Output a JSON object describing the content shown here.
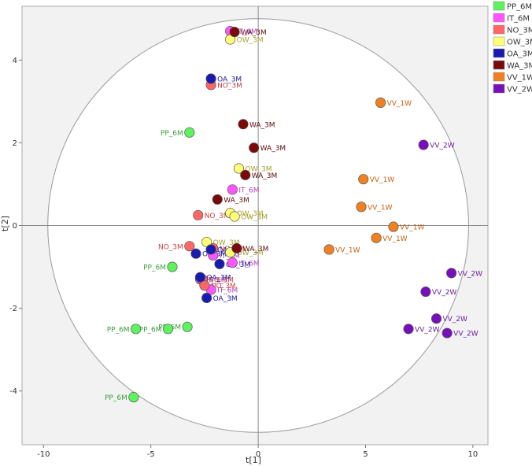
{
  "chart_data": {
    "type": "scatter",
    "title": "",
    "xlabel": "t[1]",
    "ylabel": "t[2]",
    "xlim": [
      -11,
      10.7
    ],
    "ylim": [
      -5.3,
      5.3
    ],
    "xticks": [
      -10,
      -5,
      0,
      5,
      10
    ],
    "yticks": [
      -4,
      -2,
      0,
      2,
      4
    ],
    "ellipse": {
      "cx": 0,
      "cy": 0,
      "rx": 9.8,
      "ry": 5.0
    },
    "legend_position": "top-right",
    "series": [
      {
        "name": "PP_6M",
        "color": "#5ef25e",
        "label_color": "#3a9e3a",
        "points": [
          {
            "x": -3.2,
            "y": 2.25,
            "label": "PP_6M"
          },
          {
            "x": -4.0,
            "y": -1.0,
            "label": "PP_6M"
          },
          {
            "x": -4.2,
            "y": -2.5,
            "label": "PP_6M"
          },
          {
            "x": -3.3,
            "y": -2.45,
            "label": "PP_6M"
          },
          {
            "x": -5.7,
            "y": -2.5,
            "label": "PP_6M"
          },
          {
            "x": -5.8,
            "y": -4.15,
            "label": "PP_6M"
          }
        ]
      },
      {
        "name": "IT_6M",
        "color": "#ff55ff",
        "label_color": "#b33cb3",
        "points": [
          {
            "x": -1.3,
            "y": 4.7,
            "label": "IT_6M"
          },
          {
            "x": -1.2,
            "y": 0.87,
            "label": "IT_6M"
          },
          {
            "x": -2.1,
            "y": -0.72,
            "label": "IT_6M"
          },
          {
            "x": -1.2,
            "y": -0.9,
            "label": "IT_6M"
          },
          {
            "x": -2.7,
            "y": -1.3,
            "label": "IT_6M"
          },
          {
            "x": -2.2,
            "y": -1.55,
            "label": "IT_6M"
          }
        ]
      },
      {
        "name": "NO_3M",
        "color": "#ff6666",
        "label_color": "#c84040",
        "points": [
          {
            "x": -2.2,
            "y": 3.4,
            "label": "NO_3M"
          },
          {
            "x": -2.8,
            "y": 0.25,
            "label": "NO_3M"
          },
          {
            "x": -3.2,
            "y": -0.5,
            "label": "NO_3M"
          },
          {
            "x": -2.1,
            "y": -0.55,
            "label": "NO_3M"
          },
          {
            "x": -2.6,
            "y": -1.3,
            "label": "NO_3M"
          },
          {
            "x": -2.5,
            "y": -1.45,
            "label": "NO_3M"
          }
        ]
      },
      {
        "name": "OW_3M",
        "color": "#ffff77",
        "label_color": "#a8a030",
        "points": [
          {
            "x": -1.3,
            "y": 4.5,
            "label": "OW_3M"
          },
          {
            "x": -0.9,
            "y": 1.38,
            "label": "OW_3M"
          },
          {
            "x": -1.3,
            "y": 0.3,
            "label": "OW_3M"
          },
          {
            "x": -1.1,
            "y": 0.22,
            "label": "OW_3M"
          },
          {
            "x": -2.4,
            "y": -0.4,
            "label": "OW_3M"
          },
          {
            "x": -1.3,
            "y": -0.65,
            "label": "OW_3M"
          }
        ]
      },
      {
        "name": "OA_3M",
        "color": "#1a1ab0",
        "label_color": "#1a1a9a",
        "points": [
          {
            "x": -2.2,
            "y": 3.55,
            "label": "OA_3M"
          },
          {
            "x": -2.9,
            "y": -0.68,
            "label": "OA_3M"
          },
          {
            "x": -2.2,
            "y": -0.58,
            "label": "OA_3M"
          },
          {
            "x": -1.8,
            "y": -0.93,
            "label": "OA_3M"
          },
          {
            "x": -2.7,
            "y": -1.25,
            "label": "OA_3M"
          },
          {
            "x": -2.4,
            "y": -1.75,
            "label": "OA_3M"
          }
        ]
      },
      {
        "name": "WA_3M",
        "color": "#7a0a0a",
        "label_color": "#5a0a0a",
        "points": [
          {
            "x": -1.1,
            "y": 4.68,
            "label": "WA_3M"
          },
          {
            "x": -0.7,
            "y": 2.45,
            "label": "WA_3M"
          },
          {
            "x": -0.2,
            "y": 1.88,
            "label": "WA_3M"
          },
          {
            "x": -0.6,
            "y": 1.22,
            "label": "WA_3M"
          },
          {
            "x": -1.9,
            "y": 0.63,
            "label": "WA_3M"
          },
          {
            "x": -1.0,
            "y": -0.55,
            "label": "WA_3M"
          }
        ]
      },
      {
        "name": "VV_1W",
        "color": "#f08020",
        "label_color": "#c86010",
        "points": [
          {
            "x": 5.7,
            "y": 2.97,
            "label": "VV_1W"
          },
          {
            "x": 4.9,
            "y": 1.12,
            "label": "VV_1W"
          },
          {
            "x": 4.8,
            "y": 0.45,
            "label": "VV_1W"
          },
          {
            "x": 6.3,
            "y": -0.03,
            "label": "VV_1W"
          },
          {
            "x": 5.5,
            "y": -0.3,
            "label": "VV_1W"
          },
          {
            "x": 3.3,
            "y": -0.58,
            "label": "VV_1W"
          }
        ]
      },
      {
        "name": "VV_2W",
        "color": "#7710bb",
        "label_color": "#6a1aa0",
        "points": [
          {
            "x": 7.7,
            "y": 1.95,
            "label": "VV_2W"
          },
          {
            "x": 9.0,
            "y": -1.15,
            "label": "VV_2W"
          },
          {
            "x": 7.8,
            "y": -1.6,
            "label": "VV_2W"
          },
          {
            "x": 8.3,
            "y": -2.25,
            "label": "VV_2W"
          },
          {
            "x": 7.0,
            "y": -2.5,
            "label": "VV_2W"
          },
          {
            "x": 8.8,
            "y": -2.6,
            "label": "VV_2W"
          }
        ]
      }
    ]
  }
}
